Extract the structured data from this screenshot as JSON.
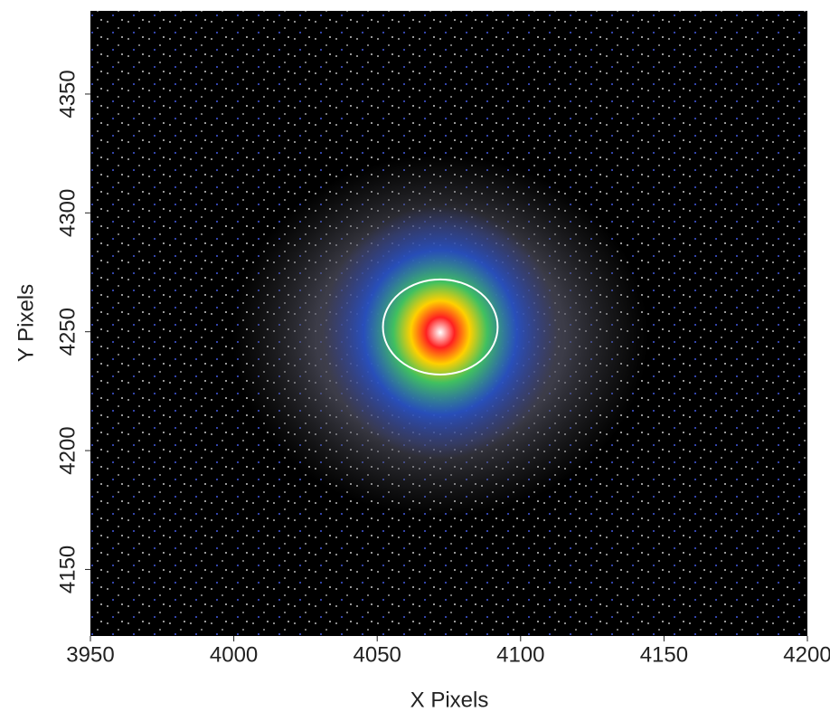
{
  "chart_data": {
    "type": "image",
    "x_label": "X Pixels",
    "y_label": "Y Pixels",
    "xlim": [
      3950,
      4200
    ],
    "ylim": [
      4122,
      4385
    ],
    "xticks": [
      3950,
      4000,
      4050,
      4100,
      4150,
      4200
    ],
    "yticks": [
      4150,
      4200,
      4250,
      4300,
      4350
    ],
    "circle": {
      "x": 4072,
      "y": 4252,
      "r": 20,
      "color": "#ffffff"
    }
  }
}
